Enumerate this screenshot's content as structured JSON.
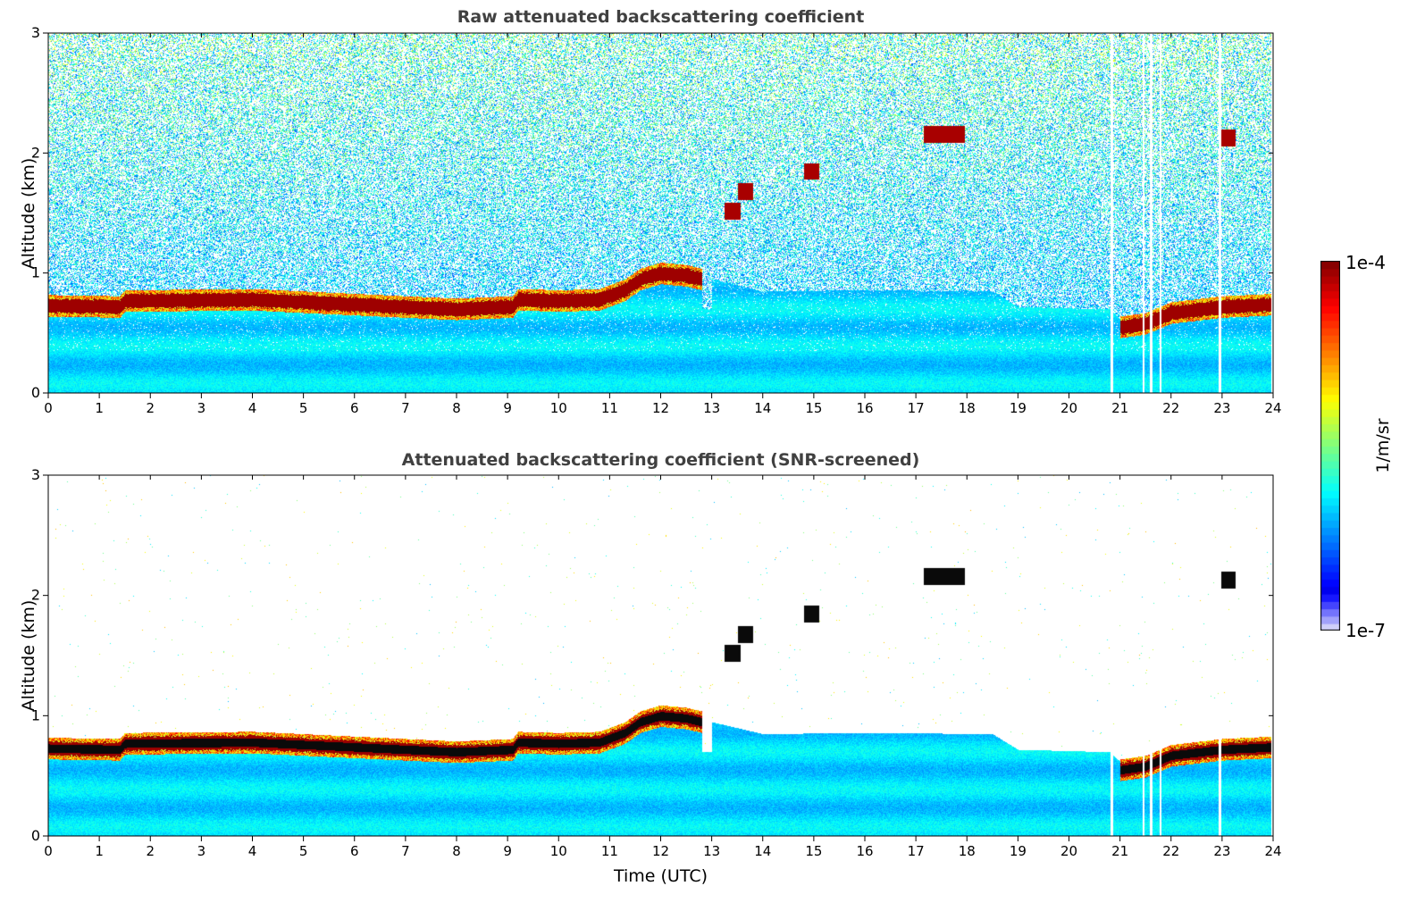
{
  "chart_data": [
    {
      "type": "heatmap",
      "title": "Raw attenuated backscattering coefficient",
      "xlabel": "",
      "ylabel": "Altitude (km)",
      "xlim": [
        0,
        24
      ],
      "ylim": [
        0,
        3
      ],
      "xticks": [
        "0",
        "1",
        "2",
        "3",
        "4",
        "5",
        "6",
        "7",
        "8",
        "9",
        "10",
        "11",
        "12",
        "13",
        "14",
        "15",
        "16",
        "17",
        "18",
        "19",
        "20",
        "21",
        "22",
        "23",
        "24"
      ],
      "yticks": [
        "0",
        "1",
        "2",
        "3"
      ],
      "screened": false
    },
    {
      "type": "heatmap",
      "title": "Attenuated backscattering coefficient (SNR-screened)",
      "xlabel": "Time (UTC)",
      "ylabel": "Altitude (km)",
      "xlim": [
        0,
        24
      ],
      "ylim": [
        0,
        3
      ],
      "xticks": [
        "0",
        "1",
        "2",
        "3",
        "4",
        "5",
        "6",
        "7",
        "8",
        "9",
        "10",
        "11",
        "12",
        "13",
        "14",
        "15",
        "16",
        "17",
        "18",
        "19",
        "20",
        "21",
        "22",
        "23",
        "24"
      ],
      "yticks": [
        "0",
        "1",
        "2",
        "3"
      ],
      "screened": true
    }
  ],
  "features": {
    "cloud_layer_altitude_km": [
      [
        0,
        0.73
      ],
      [
        1.4,
        0.72
      ],
      [
        1.5,
        0.77
      ],
      [
        4,
        0.78
      ],
      [
        6,
        0.74
      ],
      [
        8,
        0.7
      ],
      [
        9.1,
        0.72
      ],
      [
        9.2,
        0.78
      ],
      [
        10,
        0.77
      ],
      [
        10.8,
        0.78
      ],
      [
        11.3,
        0.86
      ],
      [
        11.6,
        0.95
      ],
      [
        12,
        1.0
      ],
      [
        12.5,
        0.98
      ],
      [
        12.8,
        0.95
      ]
    ],
    "cloud_layer_late_km": [
      [
        21,
        0.55
      ],
      [
        21.5,
        0.58
      ],
      [
        22,
        0.67
      ],
      [
        23,
        0.72
      ],
      [
        24,
        0.74
      ]
    ],
    "elevated_clouds": [
      {
        "time": 13.4,
        "alt_km": 1.52
      },
      {
        "time": 13.65,
        "alt_km": 1.68
      },
      {
        "time": 14.95,
        "alt_km": 1.85
      },
      {
        "time": 17.55,
        "alt_km": 2.16
      },
      {
        "time": 23.1,
        "alt_km": 2.13
      }
    ],
    "aerosol_top_km": [
      [
        13,
        0.95
      ],
      [
        14,
        0.85
      ],
      [
        16,
        0.86
      ],
      [
        18.5,
        0.85
      ],
      [
        19,
        0.72
      ],
      [
        20.8,
        0.7
      ],
      [
        21,
        0.62
      ]
    ],
    "data_gaps_time": [
      20.83,
      21.45,
      21.6,
      21.78,
      22.95,
      23.98
    ]
  },
  "colorbar": {
    "label": "1/m/sr",
    "max_label": "1e-4",
    "min_label": "1e-7",
    "log_min": -7,
    "log_max": -4,
    "colormap": "jet"
  }
}
